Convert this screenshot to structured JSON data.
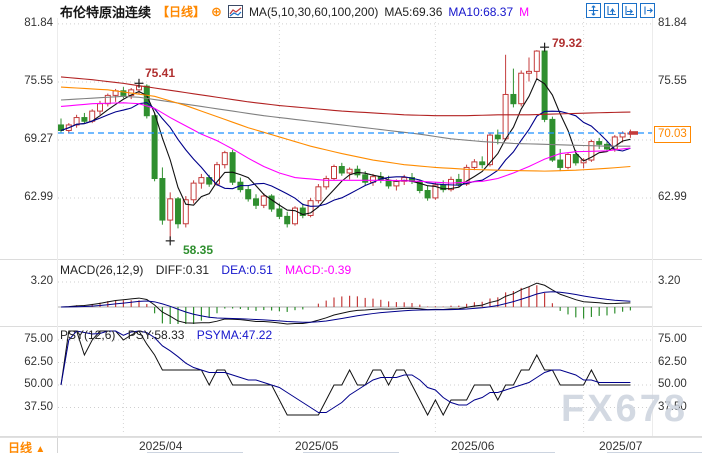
{
  "header": {
    "title": "布伦特原油连续",
    "period": "【日线】",
    "add_icon": "⊕",
    "ma_settings": "MA(5,10,30,60,100,200)",
    "ma5": "MA5:69.36",
    "ma10": "MA10:68.37",
    "ma30_truncated": "M"
  },
  "main_panel": {
    "left_ticks": [
      "81.84",
      "75.55",
      "69.27",
      "62.99"
    ],
    "right_ticks": [
      "81.84",
      "75.55",
      "62.99"
    ],
    "annotations": {
      "high1": "75.41",
      "low1": "58.35",
      "high2": "79.32",
      "last": "70.03"
    }
  },
  "macd_panel": {
    "name": "MACD(26,12,9)",
    "diff_label": "DIFF:0.31",
    "dea_label": "DEA:0.51",
    "macd_label": "MACD:-0.39",
    "tick": "3.20"
  },
  "psy_panel": {
    "name": "PSY(12,6)",
    "psy_label": "PSY:58.33",
    "psyma_label": "PSYMA:47.22",
    "ticks": [
      "75.00",
      "62.50",
      "50.00",
      "37.50"
    ]
  },
  "bottom_bar": {
    "period_label": "日线",
    "arrow": "▲",
    "dates": [
      "2025/04",
      "2025/05",
      "2025/06",
      "2025/07"
    ]
  },
  "watermark": "FX678",
  "colors": {
    "up": "#c43c3c",
    "down": "#2f8f2f",
    "accent": "#ff8800",
    "dashed_price_line": "#1e90ff",
    "grid": "#cfcfcf",
    "ma5": "#111111",
    "ma10": "#00008b",
    "ma30": "#ff00ff",
    "ma60": "#808080",
    "ma100": "#ff8c00",
    "ma200": "#b22222"
  },
  "chart_data": {
    "type": "candlestick",
    "title": "布伦特原油连续 日线",
    "y_ticks": [
      81.84,
      75.55,
      69.27,
      62.99
    ],
    "last_price": 70.03,
    "ohlc_format": [
      "open",
      "high",
      "low",
      "close"
    ],
    "candles": [
      [
        70.9,
        71.6,
        70.1,
        70.3
      ],
      [
        70.3,
        71.1,
        70.0,
        70.9
      ],
      [
        70.9,
        72.0,
        70.6,
        71.7
      ],
      [
        71.7,
        72.2,
        71.0,
        71.3
      ],
      [
        71.3,
        72.6,
        71.1,
        72.4
      ],
      [
        72.4,
        73.5,
        72.0,
        73.2
      ],
      [
        73.2,
        74.3,
        72.9,
        74.1
      ],
      [
        74.1,
        74.8,
        73.4,
        74.6
      ],
      [
        74.6,
        75.0,
        73.8,
        74.1
      ],
      [
        74.1,
        74.9,
        73.7,
        74.7
      ],
      [
        74.7,
        75.41,
        74.2,
        75.1
      ],
      [
        75.1,
        75.3,
        71.6,
        71.9
      ],
      [
        71.9,
        72.2,
        64.8,
        65.1
      ],
      [
        65.1,
        66.3,
        60.1,
        60.6
      ],
      [
        60.6,
        63.6,
        58.35,
        62.9
      ],
      [
        62.9,
        63.1,
        59.7,
        60.2
      ],
      [
        60.2,
        63.2,
        59.8,
        62.8
      ],
      [
        62.8,
        64.9,
        62.4,
        64.6
      ],
      [
        64.6,
        65.6,
        64.0,
        65.2
      ],
      [
        65.2,
        65.5,
        64.2,
        64.5
      ],
      [
        64.5,
        66.9,
        64.3,
        66.6
      ],
      [
        66.6,
        68.1,
        66.2,
        67.9
      ],
      [
        67.9,
        68.2,
        64.4,
        64.7
      ],
      [
        64.7,
        65.2,
        63.6,
        63.9
      ],
      [
        63.9,
        64.3,
        62.6,
        62.9
      ],
      [
        62.9,
        63.4,
        61.8,
        62.2
      ],
      [
        62.2,
        63.5,
        61.9,
        63.2
      ],
      [
        63.2,
        63.4,
        61.5,
        61.8
      ],
      [
        61.8,
        62.4,
        60.7,
        61.0
      ],
      [
        61.0,
        61.5,
        59.8,
        60.2
      ],
      [
        60.2,
        62.1,
        60.0,
        61.9
      ],
      [
        61.9,
        62.4,
        60.8,
        61.1
      ],
      [
        61.1,
        63.0,
        60.9,
        62.7
      ],
      [
        62.7,
        64.5,
        62.4,
        64.2
      ],
      [
        64.2,
        65.4,
        63.9,
        65.1
      ],
      [
        65.1,
        66.6,
        64.9,
        66.4
      ],
      [
        66.4,
        66.8,
        65.4,
        65.7
      ],
      [
        65.7,
        66.3,
        65.0,
        66.1
      ],
      [
        66.1,
        66.5,
        65.2,
        65.5
      ],
      [
        65.5,
        65.9,
        64.4,
        64.7
      ],
      [
        64.7,
        65.6,
        64.3,
        65.3
      ],
      [
        65.3,
        65.8,
        64.6,
        64.9
      ],
      [
        64.9,
        65.4,
        64.0,
        64.3
      ],
      [
        64.3,
        65.0,
        63.8,
        64.8
      ],
      [
        64.8,
        65.5,
        64.4,
        65.2
      ],
      [
        65.2,
        65.7,
        64.5,
        64.8
      ],
      [
        64.8,
        65.0,
        63.5,
        63.8
      ],
      [
        63.8,
        64.3,
        62.7,
        63.0
      ],
      [
        63.0,
        64.7,
        62.8,
        64.4
      ],
      [
        64.4,
        64.9,
        63.6,
        63.9
      ],
      [
        63.9,
        65.3,
        63.7,
        65.0
      ],
      [
        65.0,
        65.6,
        64.2,
        64.5
      ],
      [
        64.5,
        66.6,
        64.3,
        66.3
      ],
      [
        66.3,
        67.2,
        66.0,
        66.9
      ],
      [
        66.9,
        67.5,
        66.2,
        66.6
      ],
      [
        66.6,
        70.0,
        66.4,
        69.8
      ],
      [
        69.8,
        70.4,
        68.8,
        69.4
      ],
      [
        69.4,
        78.5,
        69.2,
        74.2
      ],
      [
        74.2,
        77.0,
        72.8,
        73.2
      ],
      [
        73.2,
        76.8,
        72.9,
        76.5
      ],
      [
        76.5,
        78.2,
        75.6,
        76.7
      ],
      [
        76.7,
        79.0,
        75.9,
        78.9
      ],
      [
        78.9,
        79.32,
        71.2,
        71.5
      ],
      [
        71.5,
        71.8,
        66.9,
        67.1
      ],
      [
        67.1,
        68.3,
        65.9,
        66.3
      ],
      [
        66.3,
        67.9,
        66.1,
        67.7
      ],
      [
        67.7,
        68.2,
        66.5,
        66.8
      ],
      [
        66.8,
        67.3,
        66.2,
        67.1
      ],
      [
        67.1,
        69.3,
        66.9,
        69.1
      ],
      [
        69.1,
        69.5,
        68.3,
        68.8
      ],
      [
        68.8,
        69.2,
        68.1,
        68.3
      ],
      [
        68.3,
        69.8,
        68.0,
        69.6
      ],
      [
        69.6,
        70.2,
        69.0,
        70.0
      ],
      [
        70.0,
        70.4,
        69.5,
        70.03
      ]
    ],
    "month_start_indices": [
      8,
      28,
      48,
      67
    ],
    "month_labels": [
      "2025/04",
      "2025/05",
      "2025/06",
      "2025/07"
    ],
    "extremes": {
      "high1": {
        "index": 10,
        "price": 75.41
      },
      "low1": {
        "index": 14,
        "price": 58.35
      },
      "high2": {
        "index": 62,
        "price": 79.32
      }
    },
    "ma_overlays": [
      {
        "name": "MA5",
        "color": "#111111",
        "computed_period": 5
      },
      {
        "name": "MA10",
        "color": "#00008b",
        "computed_period": 10
      },
      {
        "name": "MA30",
        "color": "#ff00ff",
        "points": [
          [
            0,
            72.9
          ],
          [
            4,
            73.2
          ],
          [
            8,
            73.3
          ],
          [
            10,
            73.2
          ],
          [
            12,
            72.7
          ],
          [
            14,
            71.7
          ],
          [
            16,
            70.8
          ],
          [
            18,
            69.9
          ],
          [
            20,
            69.2
          ],
          [
            22,
            68.3
          ],
          [
            24,
            67.3
          ],
          [
            26,
            66.4
          ],
          [
            28,
            65.7
          ],
          [
            30,
            65.2
          ],
          [
            34,
            64.9
          ],
          [
            38,
            64.9
          ],
          [
            42,
            64.9
          ],
          [
            46,
            64.8
          ],
          [
            50,
            64.6
          ],
          [
            54,
            64.8
          ],
          [
            56,
            65.1
          ],
          [
            58,
            65.7
          ],
          [
            60,
            66.4
          ],
          [
            62,
            67.2
          ],
          [
            64,
            67.8
          ],
          [
            66,
            68.0
          ],
          [
            70,
            68.1
          ],
          [
            73,
            68.4
          ]
        ]
      },
      {
        "name": "MA60",
        "color": "#808080",
        "points": [
          [
            0,
            73.6
          ],
          [
            4,
            73.8
          ],
          [
            8,
            74.0
          ],
          [
            10,
            73.9
          ],
          [
            14,
            73.4
          ],
          [
            18,
            72.9
          ],
          [
            22,
            72.4
          ],
          [
            26,
            71.9
          ],
          [
            30,
            71.5
          ],
          [
            34,
            71.1
          ],
          [
            38,
            70.7
          ],
          [
            42,
            70.3
          ],
          [
            46,
            69.9
          ],
          [
            50,
            69.4
          ],
          [
            54,
            69.1
          ],
          [
            58,
            68.9
          ],
          [
            62,
            68.8
          ],
          [
            66,
            68.7
          ],
          [
            70,
            68.6
          ],
          [
            73,
            68.6
          ]
        ]
      },
      {
        "name": "MA100",
        "color": "#ff8c00",
        "points": [
          [
            0,
            75.0
          ],
          [
            6,
            74.7
          ],
          [
            12,
            74.0
          ],
          [
            16,
            73.0
          ],
          [
            20,
            71.8
          ],
          [
            24,
            70.6
          ],
          [
            28,
            69.6
          ],
          [
            32,
            68.6
          ],
          [
            36,
            67.8
          ],
          [
            40,
            67.1
          ],
          [
            44,
            66.6
          ],
          [
            48,
            66.3
          ],
          [
            52,
            66.1
          ],
          [
            56,
            66.0
          ],
          [
            62,
            65.9
          ],
          [
            66,
            66.0
          ],
          [
            70,
            66.2
          ],
          [
            73,
            66.4
          ]
        ]
      },
      {
        "name": "MA200",
        "color": "#b22222",
        "points": [
          [
            0,
            76.1
          ],
          [
            4,
            75.8
          ],
          [
            8,
            75.4
          ],
          [
            12,
            74.9
          ],
          [
            16,
            74.4
          ],
          [
            20,
            73.9
          ],
          [
            24,
            73.4
          ],
          [
            28,
            73.0
          ],
          [
            32,
            72.7
          ],
          [
            36,
            72.4
          ],
          [
            40,
            72.2
          ],
          [
            44,
            72.0
          ],
          [
            48,
            71.9
          ],
          [
            52,
            71.9
          ],
          [
            56,
            72.0
          ],
          [
            60,
            72.0
          ],
          [
            64,
            72.1
          ],
          [
            68,
            72.2
          ],
          [
            73,
            72.3
          ]
        ]
      }
    ],
    "macd": {
      "params": [
        26,
        12,
        9
      ],
      "diff": 0.31,
      "dea": 0.51,
      "macd": -0.39,
      "axis_tick": 3.2
    },
    "psy": {
      "params": [
        12,
        6
      ],
      "psy": 58.33,
      "psyma": 47.22,
      "axis_ticks": [
        75.0,
        62.5,
        50.0,
        37.5
      ]
    }
  }
}
